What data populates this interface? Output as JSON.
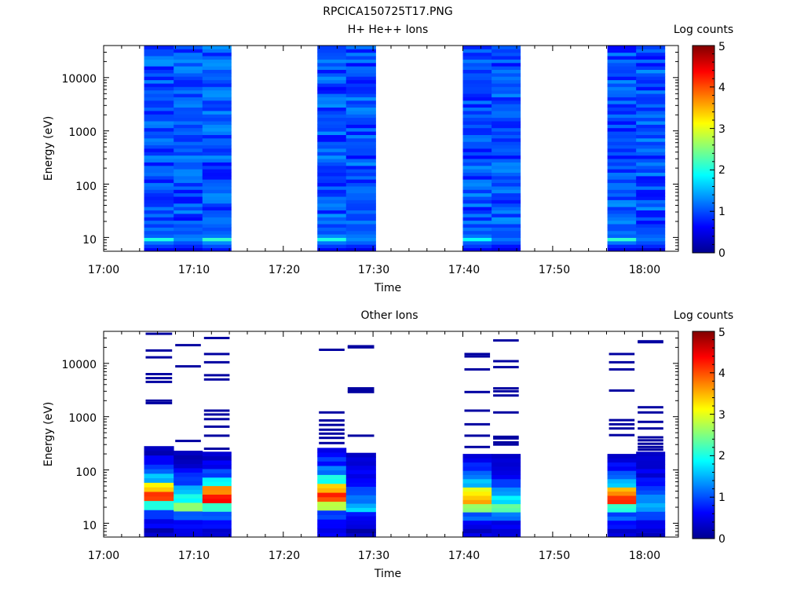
{
  "figure_title": "RPCICA150725T17.PNG",
  "colormap": [
    "#00008f",
    "#0000ff",
    "#0080ff",
    "#00ffff",
    "#80ff80",
    "#ffff00",
    "#ff8000",
    "#ff0000",
    "#800000"
  ],
  "chart_data": [
    {
      "type": "heatmap",
      "title": "H+ He++ Ions",
      "xlabel": "Time",
      "ylabel": "Energy (eV)",
      "yscale": "log",
      "ylim": [
        5.5,
        40000
      ],
      "xlim_minutes": [
        0,
        64
      ],
      "x_ticks": [
        "17:00",
        "17:10",
        "17:20",
        "17:30",
        "17:40",
        "17:50",
        "18:00"
      ],
      "y_ticks": [
        "10",
        "100",
        "1000",
        "10000"
      ],
      "colorbar": {
        "label": "Log counts",
        "range": [
          0,
          5
        ],
        "ticks": [
          "0",
          "1",
          "2",
          "3",
          "4",
          "5"
        ]
      },
      "time_bins_minutes": [
        [
          4.5,
          7.8
        ],
        [
          7.8,
          11.0
        ],
        [
          11.0,
          14.2
        ],
        [
          23.8,
          27.0
        ],
        [
          27.0,
          30.3
        ],
        [
          40.0,
          43.2
        ],
        [
          43.2,
          46.4
        ],
        [
          56.1,
          59.3
        ],
        [
          59.3,
          62.5
        ]
      ],
      "low_energy_levels": [
        [
          0.6,
          0.9,
          1.2,
          2.0,
          1.1,
          1.0,
          1.2,
          0.9
        ],
        [
          0.5,
          0.8,
          1.0,
          1.3,
          1.2,
          1.0,
          1.1,
          1.0
        ],
        [
          0.7,
          1.0,
          1.3,
          2.1,
          1.2,
          1.1,
          1.0,
          1.1
        ],
        [
          0.6,
          0.9,
          1.2,
          2.0,
          1.3,
          1.0,
          1.1,
          0.9
        ],
        [
          0.5,
          0.8,
          1.1,
          1.3,
          1.2,
          1.1,
          1.0,
          1.0
        ],
        [
          0.6,
          0.9,
          1.1,
          1.9,
          1.2,
          1.0,
          1.2,
          0.9
        ],
        [
          0.5,
          0.7,
          1.0,
          1.2,
          1.0,
          1.0,
          1.1,
          0.9
        ],
        [
          0.5,
          0.8,
          1.2,
          2.1,
          1.1,
          1.2,
          1.0,
          1.0
        ],
        [
          0.4,
          0.8,
          1.0,
          1.2,
          1.1,
          1.0,
          1.0,
          0.9
        ]
      ],
      "high_energy_level": 1.0
    },
    {
      "type": "heatmap",
      "title": "Other Ions",
      "xlabel": "Time",
      "ylabel": "Energy (eV)",
      "yscale": "log",
      "ylim": [
        5.5,
        40000
      ],
      "xlim_minutes": [
        0,
        64
      ],
      "x_ticks": [
        "17:00",
        "17:10",
        "17:20",
        "17:30",
        "17:40",
        "17:50",
        "18:00"
      ],
      "y_ticks": [
        "10",
        "100",
        "1000",
        "10000"
      ],
      "colorbar": {
        "label": "Log counts",
        "range": [
          0,
          5
        ],
        "ticks": [
          "0",
          "1",
          "2",
          "3",
          "4",
          "5"
        ]
      },
      "time_bins_minutes": [
        [
          4.5,
          7.8
        ],
        [
          7.8,
          11.0
        ],
        [
          11.0,
          14.2
        ],
        [
          23.8,
          27.0
        ],
        [
          27.0,
          30.3
        ],
        [
          40.0,
          43.2
        ],
        [
          43.2,
          46.4
        ],
        [
          56.1,
          59.3
        ],
        [
          59.3,
          62.5
        ]
      ],
      "dense_top_eV": [
        280,
        230,
        220,
        260,
        210,
        200,
        200,
        200,
        220
      ],
      "dense_levels": [
        [
          0.3,
          0.5,
          0.9,
          2.0,
          4.2,
          3.3,
          1.5,
          1.0,
          0.6,
          0.3
        ],
        [
          0.4,
          0.7,
          1.2,
          2.6,
          1.9,
          1.5,
          1.0,
          0.7,
          0.4,
          0.3
        ],
        [
          0.3,
          0.6,
          1.0,
          2.2,
          4.3,
          3.6,
          1.8,
          1.0,
          0.6,
          0.4
        ],
        [
          0.5,
          0.7,
          1.0,
          2.9,
          4.1,
          3.4,
          1.9,
          1.2,
          0.8,
          0.5
        ],
        [
          0.2,
          0.4,
          0.7,
          1.6,
          1.2,
          0.9,
          0.7,
          0.5,
          0.4,
          0.3
        ],
        [
          0.4,
          0.6,
          1.1,
          2.5,
          3.5,
          3.1,
          1.6,
          1.2,
          0.7,
          0.4
        ],
        [
          0.3,
          0.6,
          1.2,
          2.3,
          1.8,
          1.3,
          0.8,
          0.5,
          0.4,
          0.3
        ],
        [
          0.3,
          0.6,
          1.0,
          2.1,
          4.2,
          3.6,
          1.6,
          1.0,
          0.6,
          0.3
        ],
        [
          0.4,
          0.6,
          0.9,
          1.5,
          1.2,
          0.9,
          0.7,
          0.5,
          0.4,
          0.3
        ]
      ],
      "sparse_lines_eV": [
        [
          36000,
          17500,
          13000,
          6300,
          5300,
          4500,
          2000,
          1800
        ],
        [
          22000,
          8800,
          350
        ],
        [
          30000,
          15000,
          10500,
          6000,
          5000,
          1300,
          1100,
          900,
          650,
          440,
          250
        ],
        [
          18000,
          1200,
          850,
          700,
          570,
          480,
          400,
          320
        ],
        [
          21000,
          20000,
          3400,
          3100,
          2900,
          440
        ],
        [
          15000,
          13500,
          7700,
          2900,
          1300,
          720,
          440,
          270
        ],
        [
          27000,
          11000,
          8500,
          3400,
          3000,
          2500,
          1200,
          420,
          390,
          330,
          300
        ],
        [
          15000,
          10500,
          7700,
          3100,
          860,
          720,
          600,
          450
        ],
        [
          26000,
          25000,
          1500,
          1200,
          800,
          600,
          410,
          360,
          310,
          270,
          240
        ]
      ],
      "sparse_level": 0.1
    }
  ]
}
